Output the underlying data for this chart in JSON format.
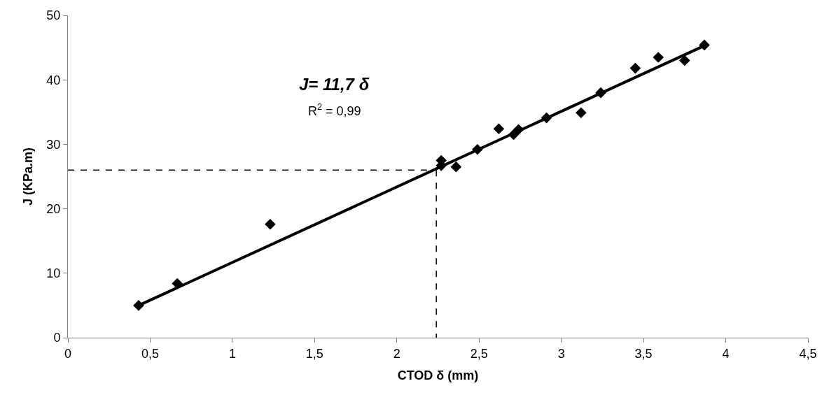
{
  "chart_data": {
    "type": "scatter",
    "xlabel": "CTOD δ (mm)",
    "ylabel": "J (KPa.m)",
    "annotations": [
      "J= 11,7 δ",
      "R$^{2}$ = 0,99"
    ],
    "series": [
      {
        "color": "#000000",
        "marker": "diamond",
        "x": [
          0.43,
          0.665,
          1.23,
          2.27,
          2.27,
          2.36,
          2.49,
          2.62,
          2.71,
          2.74,
          2.91,
          3.12,
          3.24,
          3.45,
          3.59,
          3.75,
          3.87
        ],
        "values": [
          5.0,
          8.4,
          17.6,
          27.5,
          26.7,
          26.5,
          29.2,
          32.4,
          31.5,
          32.3,
          34.1,
          34.9,
          38.0,
          41.8,
          43.5,
          43.0,
          45.4
        ]
      },
      {
        "type": "line",
        "color": "#000000",
        "line_style": "solid",
        "x": [
          0.43,
          3.87
        ],
        "values": [
          5.0,
          45.3
        ]
      },
      {
        "type": "line",
        "color": "#000000",
        "line_style": "dashed",
        "x": [
          0,
          2.24
        ],
        "values": [
          26,
          26
        ]
      },
      {
        "type": "line",
        "color": "#000000",
        "line_style": "dashed",
        "x": [
          2.24,
          2.24
        ],
        "values": [
          26,
          0
        ]
      }
    ],
    "xlim": [
      0,
      4.5
    ],
    "xticks": [
      0,
      {
        "value": 0.5,
        "label": "0,5"
      },
      1,
      {
        "value": 1.5,
        "label": "1,5"
      },
      2,
      {
        "value": 2.5,
        "label": "2,5"
      },
      3,
      {
        "value": 3.5,
        "label": "3,5"
      },
      4,
      {
        "value": 4.5,
        "label": "4,5"
      }
    ],
    "ylim": [
      0,
      50
    ],
    "yticks": [
      0,
      10,
      20,
      30,
      40,
      50
    ]
  }
}
